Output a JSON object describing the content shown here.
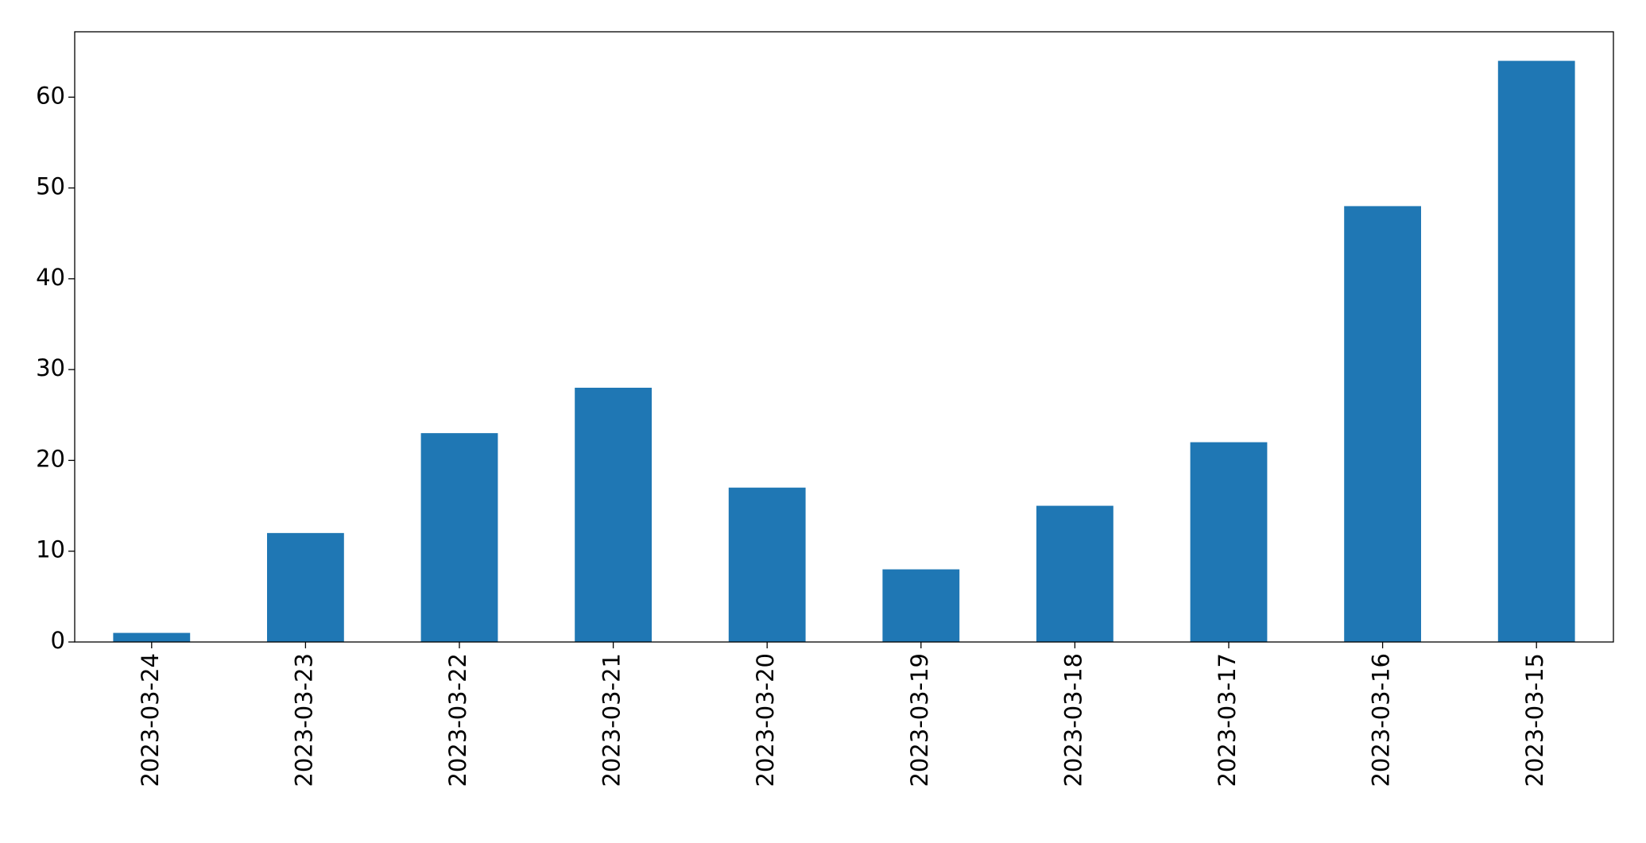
{
  "chart_data": {
    "type": "bar",
    "categories": [
      "2023-03-24",
      "2023-03-23",
      "2023-03-22",
      "2023-03-21",
      "2023-03-20",
      "2023-03-19",
      "2023-03-18",
      "2023-03-17",
      "2023-03-16",
      "2023-03-15"
    ],
    "values": [
      1,
      12,
      23,
      28,
      17,
      8,
      15,
      22,
      48,
      64
    ],
    "color": "#1f77b4",
    "ylim": [
      0,
      67.2
    ],
    "yticks": [
      0,
      10,
      20,
      30,
      40,
      50,
      60
    ],
    "grid": false
  }
}
